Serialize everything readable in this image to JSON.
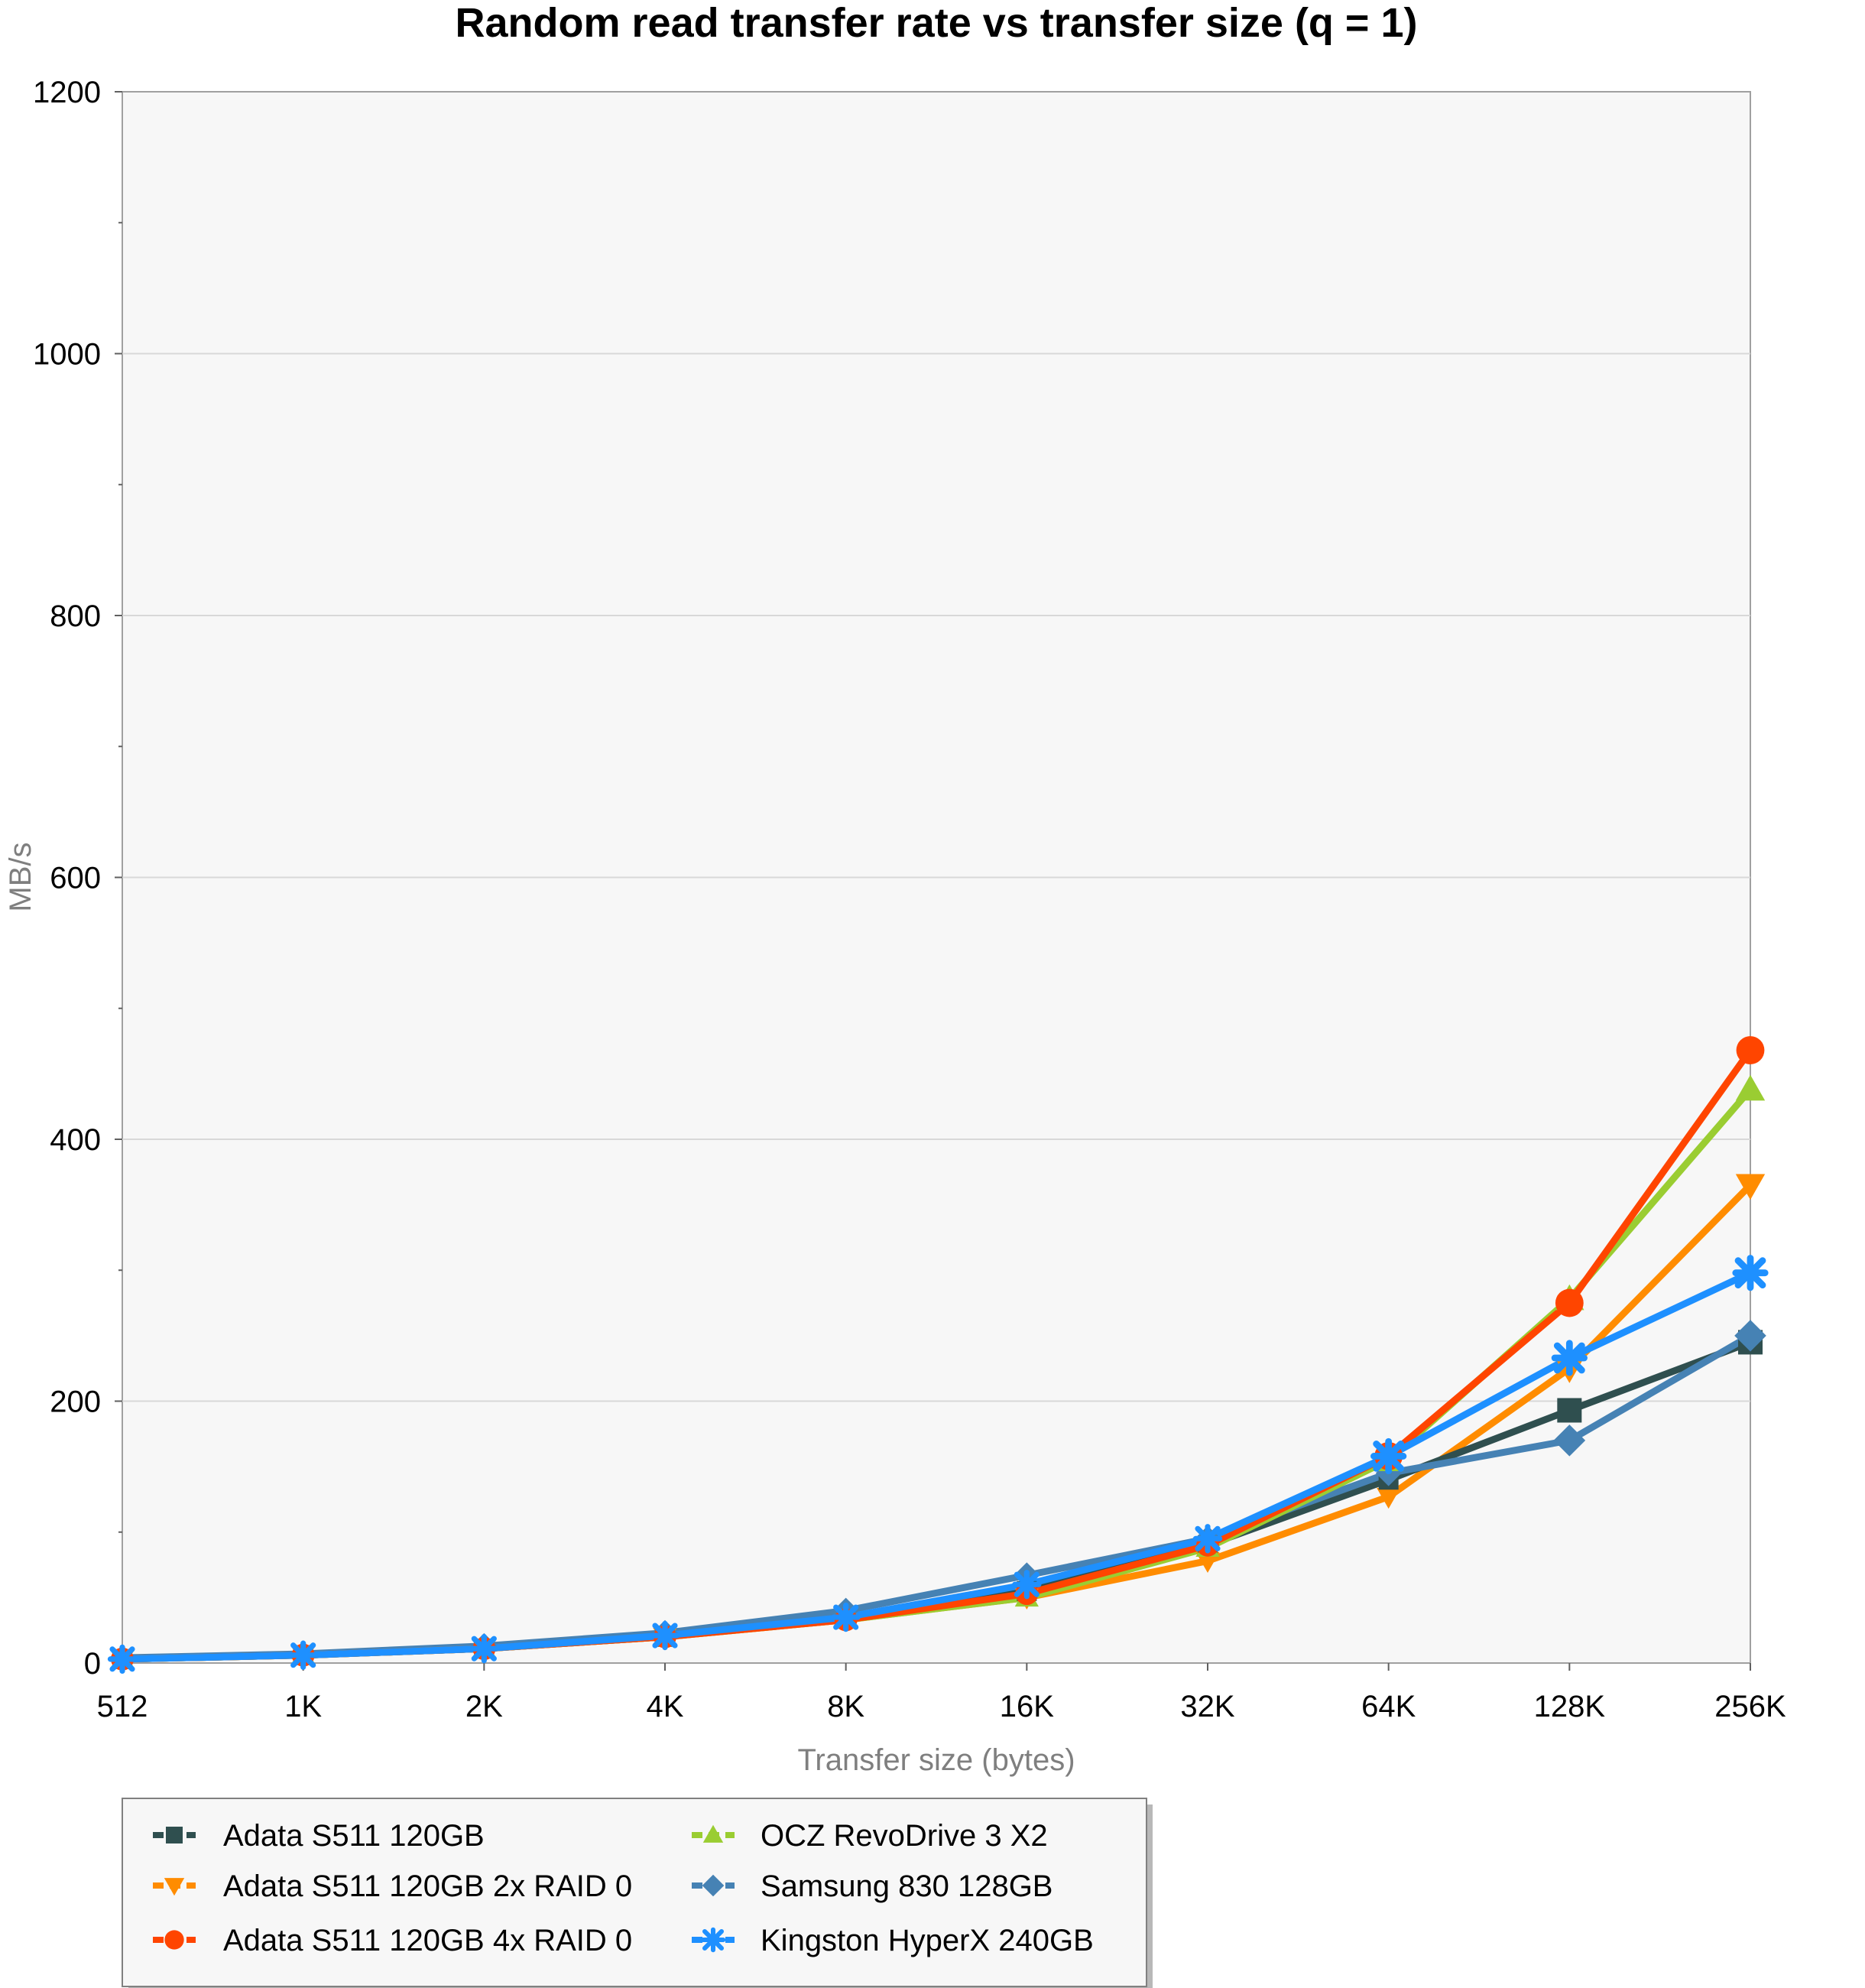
{
  "chart_data": {
    "type": "line",
    "title": "Random read transfer rate vs transfer size (q = 1)",
    "xlabel": "Transfer size (bytes)",
    "ylabel": "MB/s",
    "categories": [
      "512",
      "1K",
      "2K",
      "4K",
      "8K",
      "16K",
      "32K",
      "64K",
      "128K",
      "256K"
    ],
    "ylim": [
      0,
      1200
    ],
    "yticks": [
      "0",
      "200",
      "400",
      "600",
      "800",
      "1000",
      "1200"
    ],
    "grid": true,
    "legend_position": "bottom",
    "series": [
      {
        "name": "Adata S511 120GB",
        "color": "#2f4f4f",
        "marker": "square",
        "values": [
          3,
          6,
          11,
          20,
          35,
          55,
          90,
          140,
          193,
          245
        ]
      },
      {
        "name": "Adata S511 120GB 2x RAID 0",
        "color": "#ff8c00",
        "marker": "triangle-down",
        "values": [
          3,
          6,
          11,
          20,
          33,
          50,
          78,
          127,
          225,
          365
        ]
      },
      {
        "name": "Adata S511 120GB 4x RAID 0",
        "color": "#ff4500",
        "marker": "circle",
        "values": [
          3,
          6,
          11,
          20,
          33,
          53,
          90,
          158,
          275,
          468
        ]
      },
      {
        "name": "OCZ RevoDrive 3 X2",
        "color": "#9acd32",
        "marker": "triangle-up",
        "values": [
          3,
          6,
          11,
          20,
          33,
          50,
          88,
          155,
          278,
          438
        ]
      },
      {
        "name": "Samsung 830 128GB",
        "color": "#4682b4",
        "marker": "diamond",
        "values": [
          4,
          7,
          13,
          23,
          40,
          67,
          95,
          145,
          170,
          250
        ]
      },
      {
        "name": "Kingston HyperX 240GB",
        "color": "#1e90ff",
        "marker": "x",
        "values": [
          3,
          6,
          11,
          21,
          35,
          60,
          95,
          158,
          233,
          298
        ]
      }
    ]
  }
}
